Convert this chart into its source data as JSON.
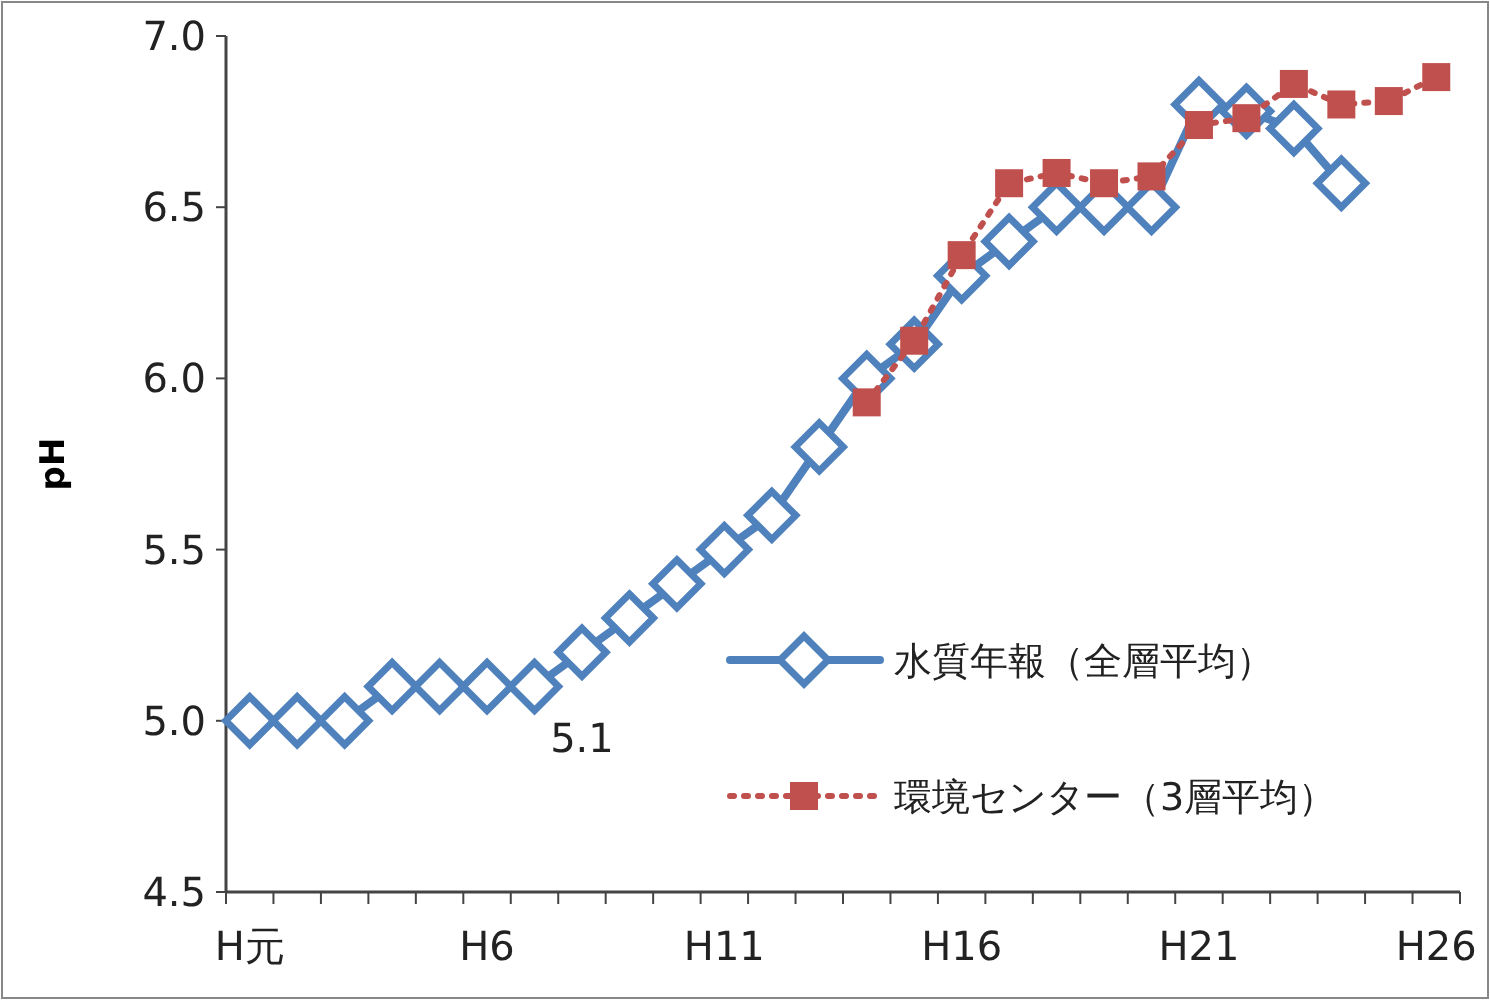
{
  "chart_data": {
    "type": "line",
    "ylabel": "pH",
    "categories": [
      "H元",
      null,
      null,
      null,
      null,
      "H6",
      null,
      null,
      null,
      null,
      "H11",
      null,
      null,
      null,
      null,
      "H16",
      null,
      null,
      null,
      null,
      "H21",
      null,
      null,
      null,
      null,
      "H26"
    ],
    "series": [
      {
        "name": "水質年報（全層平均）",
        "color": "#4f81bd",
        "marker": "diamond",
        "line_style": "solid",
        "values": [
          5.0,
          5.0,
          5.0,
          5.1,
          5.1,
          5.1,
          5.1,
          5.2,
          5.3,
          5.4,
          5.5,
          5.6,
          5.8,
          6.0,
          6.1,
          6.3,
          6.4,
          6.5,
          6.5,
          6.5,
          6.8,
          6.78,
          6.73,
          6.57,
          null,
          null
        ]
      },
      {
        "name": "環境センター（3層平均）",
        "color": "#c0504d",
        "marker": "square",
        "line_style": "dotted",
        "values": [
          null,
          null,
          null,
          null,
          null,
          null,
          null,
          null,
          null,
          null,
          null,
          null,
          null,
          5.93,
          6.11,
          6.36,
          6.57,
          6.6,
          6.57,
          6.59,
          6.74,
          6.76,
          6.86,
          6.8,
          6.81,
          6.88
        ]
      }
    ],
    "ylim": [
      4.5,
      7.0
    ],
    "yticks": [
      {
        "value": 4.5,
        "label": "4.5"
      },
      {
        "value": 5.0,
        "label": "5.0"
      },
      {
        "value": 5.5,
        "label": "5.5"
      },
      {
        "value": 6.0,
        "label": "6.0"
      },
      {
        "value": 6.5,
        "label": "6.5"
      },
      {
        "value": 7.0,
        "label": "7.0"
      }
    ],
    "grid": false,
    "legend": "right",
    "annotations": [
      "5.1"
    ]
  }
}
